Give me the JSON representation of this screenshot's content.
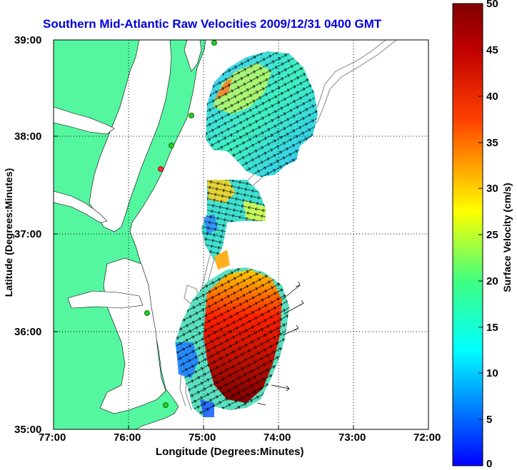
{
  "title": "Southern Mid-Atlantic Raw Velocities 2009/12/31 0400 GMT",
  "x_axis": {
    "label": "Longitude (Degrees:Minutes)",
    "ticks": [
      "77:00",
      "76:00",
      "75:00",
      "74:00",
      "73:00",
      "72:00"
    ]
  },
  "y_axis": {
    "label": "Latitude (Degrees:Minutes)",
    "ticks": [
      "39:00",
      "38:00",
      "37:00",
      "36:00",
      "35:00"
    ]
  },
  "colorbar": {
    "label": "Surface Velocity (cm/s)",
    "ticks": [
      "50",
      "45",
      "40",
      "35",
      "30",
      "25",
      "20",
      "15",
      "10",
      "5",
      "0"
    ],
    "range": [
      0,
      50
    ],
    "colormap": [
      "#0000ff",
      "#00ffff",
      "#ffff00",
      "#ff0000",
      "#800000"
    ]
  },
  "colors": {
    "land": "#55f6a0",
    "ocean": "#ffffff",
    "grid": "#000000",
    "contour": "#999999",
    "station": "#22cc22",
    "station_alert": "#ee3333",
    "title": "#0000e0"
  },
  "map": {
    "extent": {
      "lon": [
        -77,
        -72
      ],
      "lat": [
        35,
        39
      ]
    },
    "grid": true
  }
}
